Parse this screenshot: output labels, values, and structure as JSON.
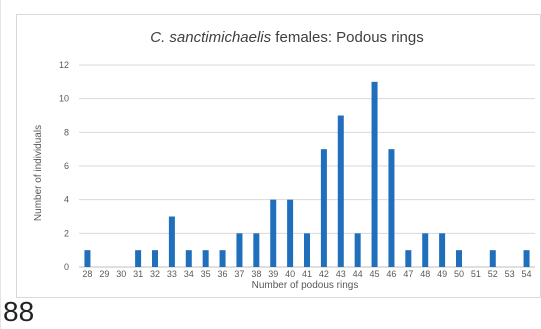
{
  "page": {
    "page_number": "88"
  },
  "chart_data": {
    "type": "bar",
    "title_italic": "C. sanctimichaelis",
    "title_rest": " females: Podous rings",
    "xlabel": "Number of podous rings",
    "ylabel": "Number of individuals",
    "ylim": [
      0,
      12
    ],
    "y_ticks": [
      0,
      2,
      4,
      6,
      8,
      10,
      12
    ],
    "grid": true,
    "bar_color": "#1f6fbd",
    "grid_color": "#d9d9d9",
    "categories": [
      "28",
      "29",
      "30",
      "31",
      "32",
      "33",
      "34",
      "35",
      "36",
      "37",
      "38",
      "39",
      "40",
      "41",
      "42",
      "43",
      "44",
      "45",
      "46",
      "47",
      "48",
      "49",
      "50",
      "51",
      "52",
      "53",
      "54"
    ],
    "values": [
      1,
      0,
      0,
      1,
      1,
      3,
      1,
      1,
      1,
      2,
      2,
      4,
      4,
      2,
      7,
      9,
      2,
      11,
      7,
      1,
      2,
      2,
      1,
      0,
      1,
      0,
      1
    ]
  }
}
